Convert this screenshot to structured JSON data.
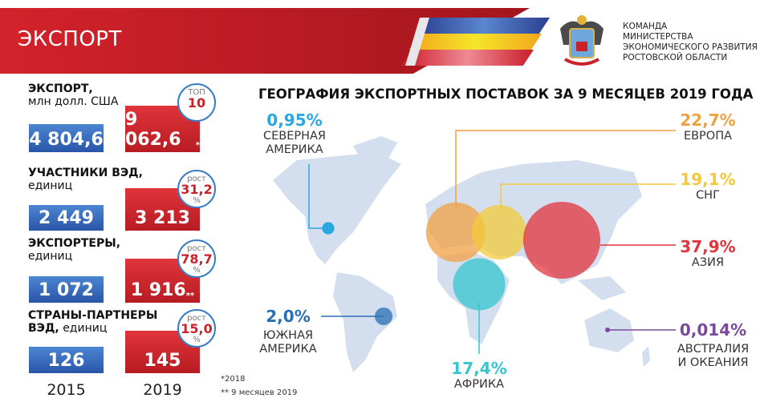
{
  "header": {
    "title": "ЭКСПОРТ",
    "org_lines": [
      "КОМАНДА",
      "МИНИСТЕРСТВА",
      "ЭКОНОМИЧЕСКОГО РАЗВИТИЯ",
      "РОСТОВСКОЙ ОБЛАСТИ"
    ],
    "logo": "coat-of-arms-rostov-oblast"
  },
  "stats": [
    {
      "title": "ЭКСПОРТ,",
      "unit": "млн долл. США",
      "v2015": "4 804,6",
      "v2019": "9 062,6",
      "mark": "*",
      "badge_top": "ТОП",
      "badge_value": "10",
      "badge_bottom": ""
    },
    {
      "title": "УЧАСТНИКИ ВЭД,",
      "unit": "единиц",
      "v2015": "2 449",
      "v2019": "3 213",
      "mark": "",
      "badge_top": "рост",
      "badge_value": "31,2",
      "badge_bottom": "%"
    },
    {
      "title": "ЭКСПОРТЕРЫ,",
      "unit": "единиц",
      "v2015": "1 072",
      "v2019": "1 916",
      "mark": "**",
      "badge_top": "рост",
      "badge_value": "78,7",
      "badge_bottom": "%"
    },
    {
      "title": "СТРАНЫ-ПАРТНЕРЫ",
      "title2": "ВЭД,",
      "unit": "единиц",
      "v2015": "126",
      "v2019": "145",
      "mark": "",
      "badge_top": "рост",
      "badge_value": "15,0",
      "badge_bottom": "%"
    }
  ],
  "years": [
    "2015",
    "2019"
  ],
  "footnotes": [
    "*2018",
    "** 9 месяцев 2019"
  ],
  "map": {
    "title": "ГЕОГРАФИЯ ЭКСПОРТНЫХ ПОСТАВОК ЗА 9 МЕСЯЦЕВ 2019 ГОДА",
    "regions": [
      {
        "pct": "0,95%",
        "name1": "СЕВЕРНАЯ",
        "name2": "АМЕРИКА",
        "color": "#2aa7e0",
        "share": 0.95
      },
      {
        "pct": "22,7%",
        "name1": "ЕВРОПА",
        "name2": "",
        "color": "#f0a043",
        "share": 22.7
      },
      {
        "pct": "19,1%",
        "name1": "СНГ",
        "name2": "",
        "color": "#f3c93a",
        "share": 19.1
      },
      {
        "pct": "37,9%",
        "name1": "АЗИЯ",
        "name2": "",
        "color": "#e2343c",
        "share": 37.9
      },
      {
        "pct": "2,0%",
        "name1": "ЮЖНАЯ",
        "name2": "АМЕРИКА",
        "color": "#2a6fb5",
        "share": 2.0
      },
      {
        "pct": "17,4%",
        "name1": "АФРИКА",
        "name2": "",
        "color": "#35c6cf",
        "share": 17.4
      },
      {
        "pct": "0,014%",
        "name1": "АВСТРАЛИЯ",
        "name2": "И ОКЕАНИЯ",
        "color": "#7a4a9a",
        "share": 0.014
      }
    ]
  }
}
